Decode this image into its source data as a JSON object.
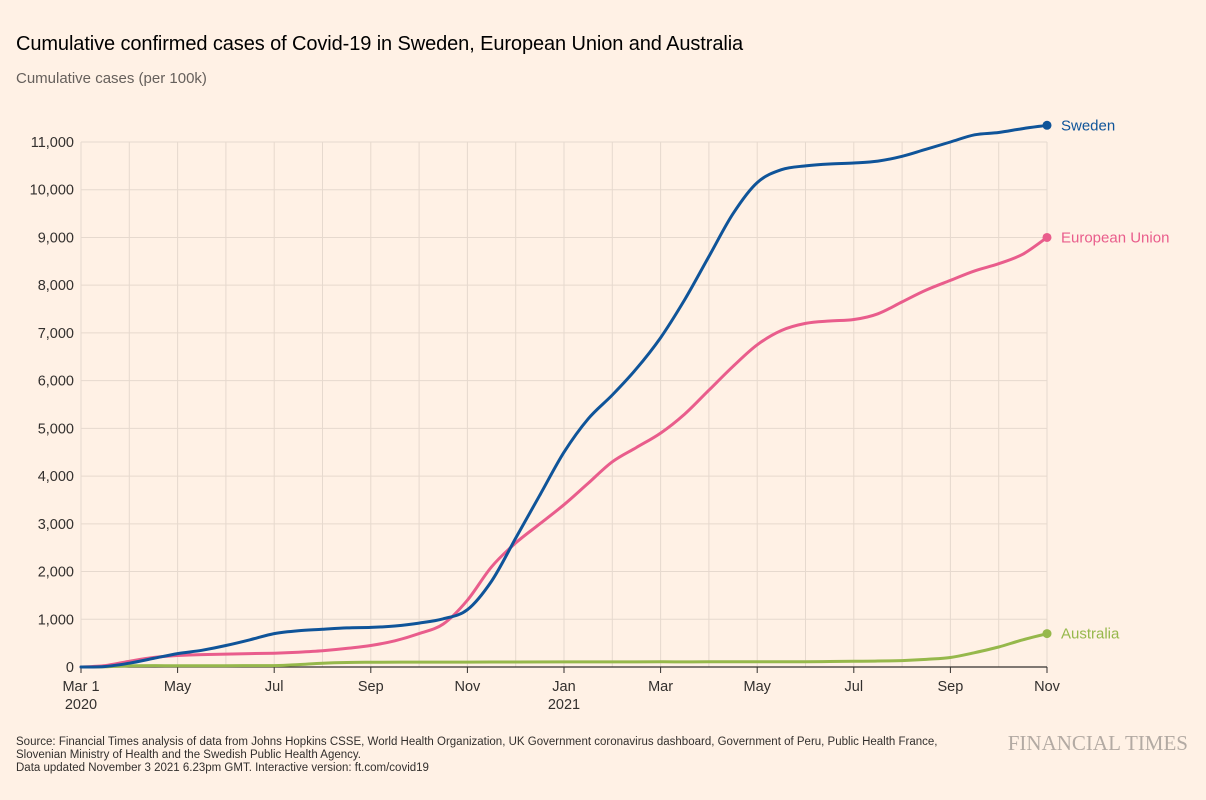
{
  "header": {
    "title": "Cumulative confirmed cases of Covid-19 in Sweden, European Union and Australia",
    "subtitle": "Cumulative cases (per 100k)"
  },
  "footer": {
    "source_line1": "Source: Financial Times analysis of data from Johns Hopkins CSSE, World Health Organization, UK Government coronavirus dashboard, Government of Peru, Public Health France,",
    "source_line2": "Slovenian Ministry of Health and the Swedish Public Health Agency.",
    "updated": "Data updated November 3 2021 6.23pm GMT. Interactive version: ft.com/covid19",
    "brand": "FINANCIAL TIMES"
  },
  "chart_data": {
    "type": "line",
    "title": "Cumulative confirmed cases of Covid-19 in Sweden, European Union and Australia",
    "ylabel": "Cumulative cases (per 100k)",
    "xlabel": "",
    "ylim": [
      0,
      11000
    ],
    "yticks": [
      0,
      1000,
      2000,
      3000,
      4000,
      5000,
      6000,
      7000,
      8000,
      9000,
      10000,
      11000
    ],
    "ytick_labels": [
      "0",
      "1,000",
      "2,000",
      "3,000",
      "4,000",
      "5,000",
      "6,000",
      "7,000",
      "8,000",
      "9,000",
      "10,000",
      "11,000"
    ],
    "x_unit": "months since Mar 1 2020",
    "xlim": [
      0,
      20
    ],
    "xticks": [
      {
        "x": 0,
        "label": "Mar 1",
        "sub": "2020"
      },
      {
        "x": 2,
        "label": "May",
        "sub": ""
      },
      {
        "x": 4,
        "label": "Jul",
        "sub": ""
      },
      {
        "x": 6,
        "label": "Sep",
        "sub": ""
      },
      {
        "x": 8,
        "label": "Nov",
        "sub": ""
      },
      {
        "x": 10,
        "label": "Jan",
        "sub": "2021"
      },
      {
        "x": 12,
        "label": "Mar",
        "sub": ""
      },
      {
        "x": 14,
        "label": "May",
        "sub": ""
      },
      {
        "x": 16,
        "label": "Jul",
        "sub": ""
      },
      {
        "x": 18,
        "label": "Sep",
        "sub": ""
      },
      {
        "x": 20,
        "label": "Nov",
        "sub": ""
      }
    ],
    "vertical_gridlines_every_months": 1,
    "series": [
      {
        "name": "Sweden",
        "color": "#0f5499",
        "x": [
          0,
          0.5,
          1,
          1.5,
          2,
          2.5,
          3,
          3.5,
          4,
          4.5,
          5,
          5.5,
          6,
          6.5,
          7,
          7.5,
          8,
          8.5,
          9,
          9.5,
          10,
          10.5,
          11,
          11.5,
          12,
          12.5,
          13,
          13.5,
          14,
          14.5,
          15,
          15.5,
          16,
          16.5,
          17,
          17.5,
          18,
          18.5,
          19,
          19.5,
          20
        ],
        "values": [
          0,
          10,
          80,
          180,
          280,
          350,
          450,
          570,
          700,
          760,
          790,
          820,
          830,
          860,
          920,
          1010,
          1200,
          1800,
          2700,
          3600,
          4500,
          5200,
          5700,
          6250,
          6900,
          7700,
          8600,
          9500,
          10150,
          10420,
          10500,
          10540,
          10560,
          10600,
          10700,
          10850,
          11000,
          11150,
          11200,
          11280,
          11350
        ]
      },
      {
        "name": "European Union",
        "color": "#e95d8c",
        "x": [
          0,
          0.5,
          1,
          1.5,
          2,
          2.5,
          3,
          3.5,
          4,
          4.5,
          5,
          5.5,
          6,
          6.5,
          7,
          7.5,
          8,
          8.5,
          9,
          9.5,
          10,
          10.5,
          11,
          11.5,
          12,
          12.5,
          13,
          13.5,
          14,
          14.5,
          15,
          15.5,
          16,
          16.5,
          17,
          17.5,
          18,
          18.5,
          19,
          19.5,
          20
        ],
        "values": [
          0,
          30,
          120,
          200,
          240,
          260,
          270,
          280,
          290,
          310,
          340,
          390,
          450,
          550,
          700,
          900,
          1400,
          2100,
          2600,
          3000,
          3400,
          3850,
          4300,
          4600,
          4900,
          5300,
          5800,
          6300,
          6750,
          7050,
          7200,
          7250,
          7280,
          7400,
          7650,
          7900,
          8100,
          8300,
          8450,
          8650,
          9000
        ]
      },
      {
        "name": "Australia",
        "color": "#96b84b",
        "x": [
          0,
          0.5,
          1,
          2,
          3,
          4,
          4.5,
          5,
          5.5,
          6,
          7,
          8,
          9,
          10,
          11,
          12,
          13,
          14,
          15,
          15.5,
          16,
          16.5,
          17,
          17.5,
          18,
          18.5,
          19,
          19.5,
          20
        ],
        "values": [
          0,
          5,
          25,
          27,
          28,
          30,
          50,
          80,
          95,
          100,
          102,
          103,
          105,
          106,
          107,
          108,
          108,
          109,
          110,
          115,
          120,
          125,
          135,
          160,
          200,
          300,
          420,
          570,
          700
        ]
      }
    ]
  }
}
